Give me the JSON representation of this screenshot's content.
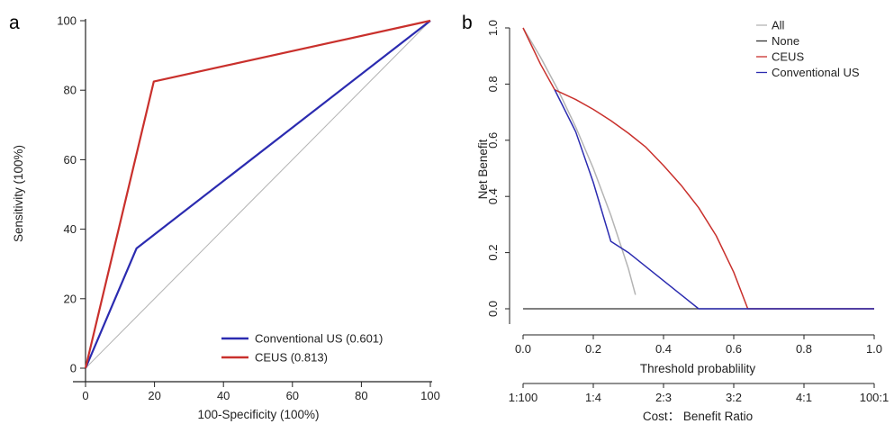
{
  "chart_data": [
    {
      "type": "line",
      "panel_label": "a",
      "xlabel": "100-Specificity (100%)",
      "ylabel": "Sensitivity (100%)",
      "xlim": [
        0,
        100
      ],
      "ylim": [
        0,
        100
      ],
      "xticks": [
        "0",
        "20",
        "40",
        "60",
        "80",
        "100"
      ],
      "yticks": [
        "0",
        "20",
        "40",
        "60",
        "80",
        "100"
      ],
      "grid": false,
      "legend_position": "bottom-right",
      "reference_line": {
        "color": "#b4b4b4",
        "x": [
          0,
          100
        ],
        "y": [
          0,
          100
        ]
      },
      "series": [
        {
          "name": "Conventional US (0.601)",
          "color": "#2b2bb0",
          "x": [
            0,
            14.8,
            100
          ],
          "y": [
            0,
            34.5,
            100
          ]
        },
        {
          "name": "CEUS (0.813)",
          "color": "#c9302c",
          "x": [
            0,
            19.8,
            100
          ],
          "y": [
            0,
            82.5,
            100
          ]
        }
      ]
    },
    {
      "type": "line",
      "panel_label": "b",
      "xlabel": "Threshold probablility",
      "ylabel": "Net Benefit",
      "xlim": [
        0,
        1
      ],
      "ylim": [
        0,
        1
      ],
      "xticks": [
        "0.0",
        "0.2",
        "0.4",
        "0.6",
        "0.8",
        "1.0"
      ],
      "yticks": [
        "0.0",
        "0.2",
        "0.4",
        "0.6",
        "0.8",
        "1.0"
      ],
      "secondary_axis_label": "Cost： Benefit Ratio",
      "secondary_ticks": [
        "1:100",
        "1:4",
        "2:3",
        "3:2",
        "4:1",
        "100:1"
      ],
      "grid": false,
      "legend_position": "top-right",
      "series": [
        {
          "name": "All",
          "color": "#b4b4b4",
          "x": [
            0,
            0.05,
            0.1,
            0.15,
            0.2,
            0.25,
            0.3,
            0.32
          ],
          "y": [
            1.0,
            0.895,
            0.778,
            0.647,
            0.5,
            0.333,
            0.143,
            0.05
          ]
        },
        {
          "name": "None",
          "color": "#333333",
          "x": [
            0,
            1
          ],
          "y": [
            0,
            0
          ]
        },
        {
          "name": "CEUS",
          "color": "#c9302c",
          "x": [
            0,
            0.05,
            0.09,
            0.15,
            0.2,
            0.25,
            0.3,
            0.35,
            0.4,
            0.45,
            0.5,
            0.55,
            0.6,
            0.64,
            0.7,
            0.8,
            0.9,
            1.0
          ],
          "y": [
            1.0,
            0.87,
            0.78,
            0.745,
            0.71,
            0.67,
            0.625,
            0.575,
            0.51,
            0.44,
            0.36,
            0.26,
            0.13,
            0.0,
            0,
            0,
            0,
            0
          ]
        },
        {
          "name": "Conventional US",
          "color": "#2b2bb0",
          "x": [
            0.09,
            0.15,
            0.2,
            0.25,
            0.3,
            0.35,
            0.4,
            0.45,
            0.5,
            0.6,
            0.7,
            0.8,
            0.9,
            1.0
          ],
          "y": [
            0.78,
            0.63,
            0.45,
            0.24,
            0.2,
            0.15,
            0.1,
            0.05,
            0.0,
            0,
            0,
            0,
            0,
            0
          ]
        }
      ]
    }
  ]
}
